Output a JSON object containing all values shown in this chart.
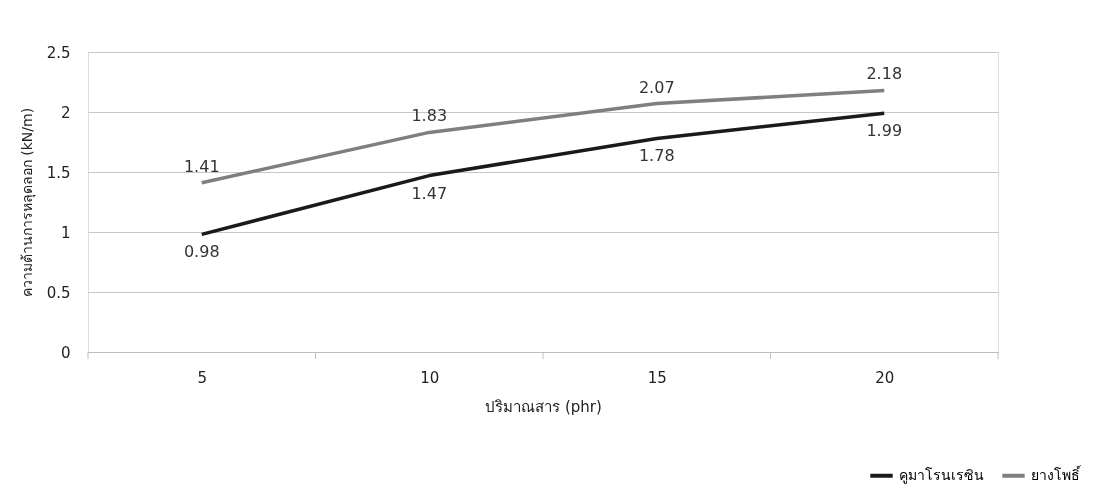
{
  "chart_data": {
    "type": "line",
    "xlabel": "ปริมาณสาร (phr)",
    "ylabel": "ความต้านการหลุดลอก (kN/m)",
    "categories": [
      "5",
      "10",
      "15",
      "20"
    ],
    "series": [
      {
        "name": "คูมาโรนเรซิน",
        "color": "#1a1a1a",
        "values": [
          0.98,
          1.47,
          1.78,
          1.99
        ]
      },
      {
        "name": "ยางโพธิ์",
        "color": "#7f7f7f",
        "values": [
          1.41,
          1.83,
          2.07,
          2.18
        ]
      }
    ],
    "ylim": [
      0,
      2.5
    ],
    "yticks": [
      0,
      0.5,
      1,
      1.5,
      2,
      2.5
    ],
    "grid": "y",
    "legend": "bottom right",
    "data_labels": true,
    "marker": "none",
    "line_style": "solid"
  }
}
